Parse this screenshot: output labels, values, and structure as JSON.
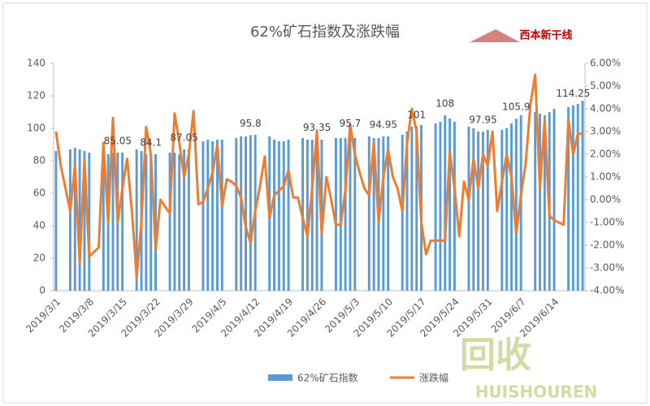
{
  "chart_data": {
    "type": "bar-line",
    "title": "62%矿石指数及涨跌幅",
    "logo": "西本新干线",
    "watermark": "回收",
    "watermark_sub": "HUISHOUREN",
    "categories": [
      "2019/3/1",
      null,
      null,
      null,
      null,
      null,
      null,
      "2019/3/8",
      null,
      null,
      null,
      null,
      null,
      null,
      "2019/3/15",
      null,
      null,
      null,
      null,
      null,
      null,
      "2019/3/22",
      null,
      null,
      null,
      null,
      null,
      null,
      "2019/3/29",
      null,
      null,
      null,
      null,
      null,
      null,
      "2019/4/5",
      null,
      null,
      null,
      null,
      null,
      null,
      "2019/4/12",
      null,
      null,
      null,
      null,
      null,
      null,
      "2019/4/19",
      null,
      null,
      null,
      null,
      null,
      null,
      "2019/4/26",
      null,
      null,
      null,
      null,
      null,
      null,
      "2019/5/3",
      null,
      null,
      null,
      null,
      null,
      null,
      "2019/5/10",
      null,
      null,
      null,
      null,
      null,
      null,
      "2019/5/17",
      null,
      null,
      null,
      null,
      null,
      null,
      "2019/5/24",
      null,
      null,
      null,
      null,
      null,
      null,
      "2019/5/31",
      null,
      null,
      null,
      null,
      null,
      null,
      "2019/6/7",
      null,
      null,
      null,
      null,
      null,
      null,
      "2019/6/14",
      null,
      null,
      null,
      null,
      null,
      null
    ],
    "series": [
      {
        "name": "62%矿石指数",
        "type": "bar",
        "color": "#5b9bd5",
        "values": [
          86,
          null,
          null,
          87,
          88,
          87,
          86,
          85,
          null,
          null,
          83,
          84,
          85,
          85.05,
          85,
          null,
          null,
          87,
          86,
          84,
          84.1,
          84,
          null,
          null,
          85,
          85,
          84,
          87.05,
          87,
          null,
          null,
          92,
          93,
          92,
          93,
          93,
          null,
          null,
          94,
          95,
          95,
          95.8,
          96,
          null,
          null,
          95,
          93,
          92,
          92,
          93,
          null,
          null,
          94,
          93,
          93,
          93.35,
          93,
          null,
          null,
          94,
          94,
          94,
          95.7,
          94,
          null,
          null,
          95,
          94,
          94,
          94.95,
          95,
          null,
          null,
          96,
          98,
          101,
          101,
          102,
          null,
          null,
          103,
          104,
          108,
          106,
          104,
          null,
          null,
          101,
          100,
          98,
          97.95,
          99,
          null,
          null,
          99,
          100,
          103,
          105.9,
          108,
          null,
          null,
          110,
          109,
          108,
          110,
          112,
          null,
          null,
          113,
          114.25,
          115,
          117
        ],
        "value_labels": [
          null,
          null,
          null,
          null,
          null,
          null,
          null,
          null,
          null,
          null,
          null,
          null,
          null,
          "85.05",
          null,
          null,
          null,
          null,
          null,
          null,
          "84.1",
          null,
          null,
          null,
          null,
          null,
          null,
          "87.05",
          null,
          null,
          null,
          null,
          null,
          null,
          null,
          null,
          null,
          null,
          null,
          null,
          null,
          "95.8",
          null,
          null,
          null,
          null,
          null,
          null,
          null,
          null,
          null,
          null,
          null,
          null,
          null,
          "93.35",
          null,
          null,
          null,
          null,
          null,
          null,
          "95.7",
          null,
          null,
          null,
          null,
          null,
          null,
          "94.95",
          null,
          null,
          null,
          null,
          null,
          null,
          "101",
          null,
          null,
          null,
          null,
          null,
          "108",
          null,
          null,
          null,
          null,
          null,
          null,
          null,
          "97.95",
          null,
          null,
          null,
          null,
          null,
          null,
          "105.9",
          null,
          null,
          null,
          null,
          null,
          null,
          null,
          null,
          null,
          null,
          null,
          "114.25",
          null,
          null
        ]
      },
      {
        "name": "涨跌幅",
        "type": "line",
        "axis": "y2",
        "color": "#ed7d31",
        "values": [
          3.0,
          1.5,
          0.5,
          -0.5,
          1.5,
          -2.8,
          1.8,
          -2.5,
          -2.3,
          -2.1,
          2.5,
          -1.0,
          3.6,
          -1.0,
          0.5,
          1.8,
          -0.5,
          -3.4,
          -1.0,
          3.2,
          2.0,
          -2.2,
          0.0,
          -0.3,
          -0.6,
          3.8,
          2.5,
          1.0,
          2.0,
          3.9,
          -0.2,
          -0.1,
          0.5,
          1.2,
          2.4,
          -0.3,
          0.9,
          0.8,
          0.6,
          0.1,
          -1.2,
          -1.9,
          -0.5,
          0.6,
          1.9,
          -0.8,
          0.2,
          0.4,
          0.6,
          1.3,
          0.1,
          0.1,
          -0.8,
          -1.6,
          0.5,
          3.0,
          -1.5,
          1.0,
          0.0,
          -1.1,
          -1.1,
          0.4,
          3.3,
          2.0,
          1.2,
          0.5,
          0.2,
          2.5,
          -1.0,
          1.0,
          2.2,
          1.0,
          0.5,
          -0.5,
          2.5,
          4.0,
          3.0,
          -1.0,
          -2.4,
          -1.8,
          -1.8,
          -1.8,
          -1.8,
          2.1,
          0.5,
          -1.6,
          0.8,
          0.0,
          1.8,
          0.5,
          2.0,
          1.5,
          3.0,
          -0.5,
          0.8,
          2.0,
          1.0,
          -1.5,
          0.2,
          1.6,
          4.2,
          5.5,
          0.5,
          3.5,
          -0.7,
          -0.9,
          -1.0,
          -1.1,
          3.5,
          2.0,
          2.9,
          2.9
        ]
      }
    ],
    "ylim": [
      0,
      140
    ],
    "yticks": [
      0,
      20,
      40,
      60,
      80,
      100,
      120,
      140
    ],
    "y2lim": [
      -4,
      6
    ],
    "y2ticks": [
      {
        "value": -4,
        "label": "-4.00%"
      },
      {
        "value": -3,
        "label": "-3.00%"
      },
      {
        "value": -2,
        "label": "-2.00%"
      },
      {
        "value": -1,
        "label": "-1.00%"
      },
      {
        "value": 0,
        "label": "0.00%"
      },
      {
        "value": 1,
        "label": "1.00%"
      },
      {
        "value": 2,
        "label": "2.00%"
      },
      {
        "value": 3,
        "label": "3.00%"
      },
      {
        "value": 4,
        "label": "4.00%"
      },
      {
        "value": 5,
        "label": "5.00%"
      },
      {
        "value": 6,
        "label": "6.00%"
      }
    ],
    "legend": "bottom"
  }
}
